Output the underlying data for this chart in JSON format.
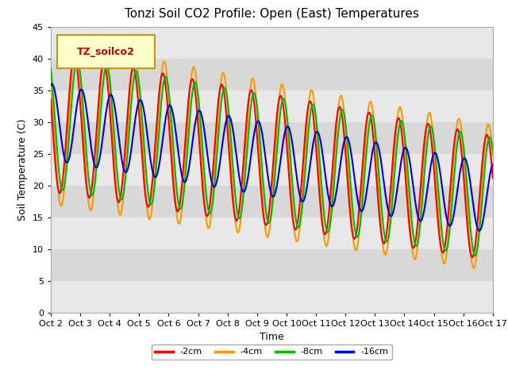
{
  "title": "Tonzi Soil CO2 Profile: Open (East) Temperatures",
  "ylabel": "Soil Temperature (C)",
  "xlabel": "Time",
  "ylim": [
    0,
    45
  ],
  "yticks": [
    0,
    5,
    10,
    15,
    20,
    25,
    30,
    35,
    40,
    45
  ],
  "x_labels": [
    "Oct 2",
    "Oct 3",
    "Oct 4",
    "Oct 5",
    "Oct 6",
    "Oct 7",
    "Oct 8",
    "Oct 9",
    "Oct 10",
    "Oct 11",
    "Oct 12",
    "Oct 13",
    "Oct 14",
    "Oct 15",
    "Oct 16",
    "Oct 17"
  ],
  "colors": {
    "-2cm": "#ff0000",
    "-4cm": "#ff9900",
    "-8cm": "#00bb00",
    "-16cm": "#0000dd"
  },
  "legend_label": "TZ_soilco2",
  "legend_text_color": "#cc0000",
  "legend_bg_color": "#ffffcc",
  "legend_edge_color": "#cc9900",
  "background_color": "#ffffff",
  "plot_bg_color": "#e8e8e8",
  "band_color_dark": "#d8d8d8",
  "title_fontsize": 11,
  "axis_fontsize": 9,
  "tick_fontsize": 8,
  "line_width": 1.5
}
